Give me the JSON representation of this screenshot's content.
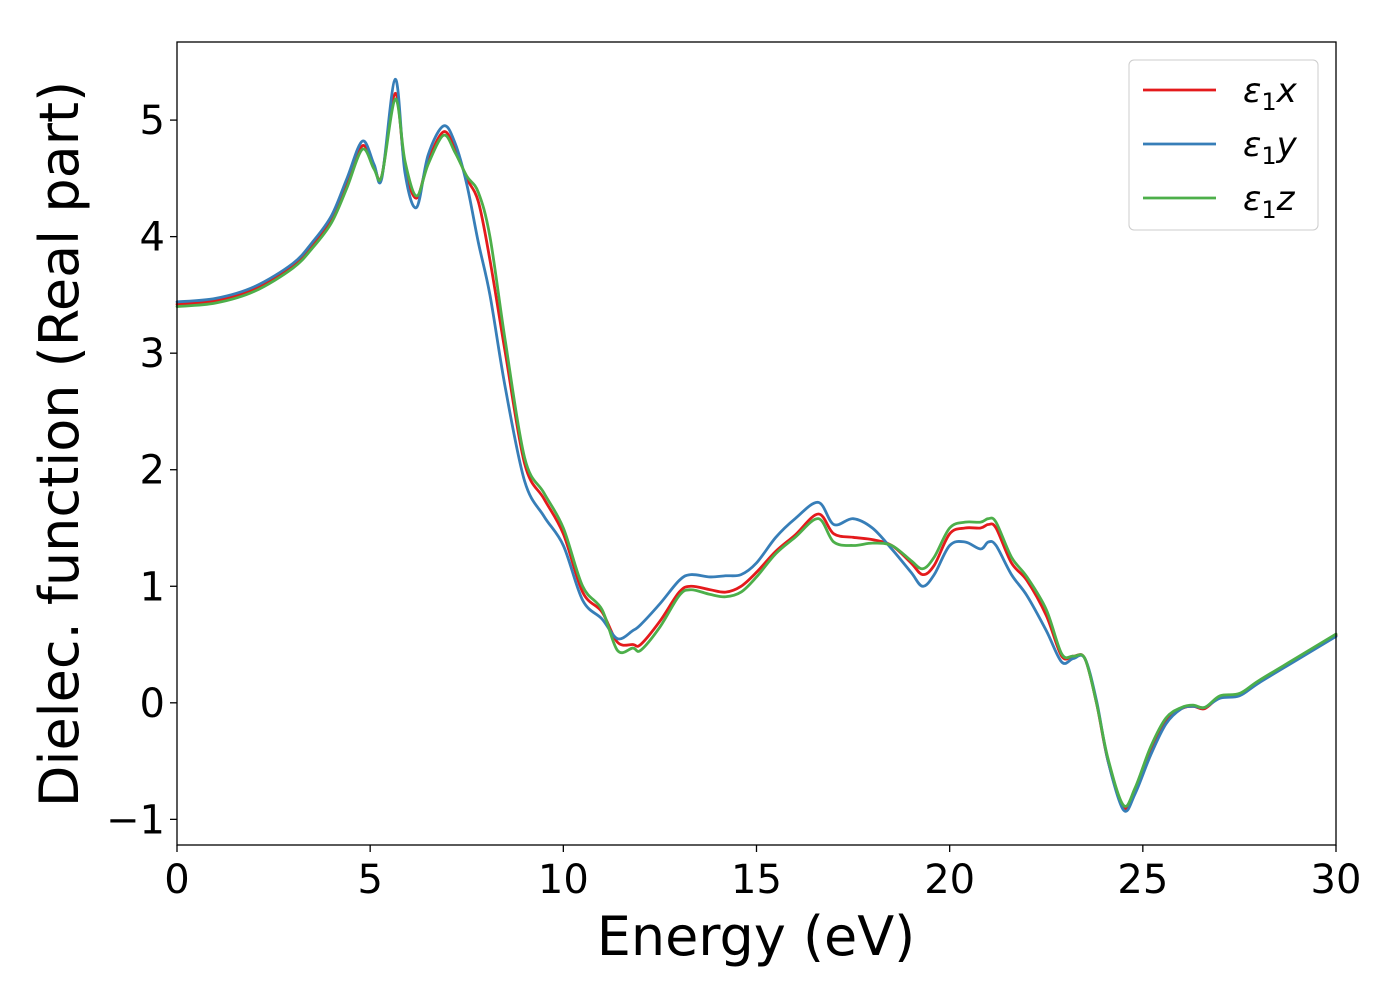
{
  "chart_data": {
    "type": "line",
    "xlabel": "Energy (eV)",
    "ylabel": "Dielec. function (Real part)",
    "xlim": [
      0,
      30
    ],
    "ylim": [
      -1.22,
      5.67
    ],
    "xticks": [
      0,
      5,
      10,
      15,
      20,
      25,
      30
    ],
    "xtick_labels": [
      "0",
      "5",
      "10",
      "15",
      "20",
      "25",
      "30"
    ],
    "yticks": [
      -1,
      0,
      1,
      2,
      3,
      4,
      5
    ],
    "ytick_labels": [
      "−1",
      "0",
      "1",
      "2",
      "3",
      "4",
      "5"
    ],
    "grid": false,
    "legend_position": "top-right",
    "series": [
      {
        "name": "ε1x",
        "legend_base": "ε",
        "legend_sub": "1",
        "legend_var": "x",
        "color": "#e41a1c",
        "x": [
          0,
          1,
          2,
          3,
          3.5,
          4,
          4.4,
          4.8,
          5.1,
          5.3,
          5.65,
          5.9,
          6.2,
          6.5,
          6.9,
          7.2,
          7.5,
          7.8,
          8.1,
          8.5,
          9.0,
          9.5,
          10.0,
          10.5,
          11.0,
          11.4,
          11.8,
          12.0,
          12.5,
          13.0,
          13.3,
          13.8,
          14.2,
          14.6,
          15.0,
          15.5,
          16.0,
          16.6,
          17.0,
          17.5,
          18.0,
          18.5,
          19.0,
          19.3,
          19.6,
          20.0,
          20.4,
          20.8,
          21.0,
          21.2,
          21.6,
          22.0,
          22.5,
          22.9,
          23.2,
          23.5,
          23.8,
          24.1,
          24.5,
          24.8,
          25.2,
          25.6,
          26.0,
          26.3,
          26.6,
          27.0,
          27.5,
          28.0,
          29.0,
          30.0
        ],
        "y": [
          3.42,
          3.45,
          3.55,
          3.75,
          3.92,
          4.15,
          4.45,
          4.78,
          4.6,
          4.52,
          5.23,
          4.6,
          4.33,
          4.65,
          4.9,
          4.75,
          4.5,
          4.3,
          3.8,
          3.0,
          2.05,
          1.75,
          1.45,
          0.95,
          0.78,
          0.52,
          0.5,
          0.5,
          0.7,
          0.95,
          1.0,
          0.97,
          0.95,
          1.0,
          1.12,
          1.3,
          1.44,
          1.62,
          1.45,
          1.42,
          1.4,
          1.35,
          1.2,
          1.1,
          1.18,
          1.45,
          1.5,
          1.5,
          1.53,
          1.5,
          1.2,
          1.05,
          0.75,
          0.4,
          0.4,
          0.38,
          0.0,
          -0.5,
          -0.9,
          -0.75,
          -0.4,
          -0.15,
          -0.05,
          -0.03,
          -0.05,
          0.05,
          0.07,
          0.18,
          0.38,
          0.58
        ]
      },
      {
        "name": "ε1y",
        "legend_base": "ε",
        "legend_sub": "1",
        "legend_var": "y",
        "color": "#377eb8",
        "x": [
          0,
          1,
          2,
          3,
          3.5,
          4,
          4.4,
          4.8,
          5.1,
          5.3,
          5.65,
          5.9,
          6.2,
          6.5,
          6.9,
          7.2,
          7.5,
          7.8,
          8.1,
          8.5,
          9.0,
          9.5,
          10.0,
          10.5,
          11.0,
          11.4,
          11.8,
          12.0,
          12.5,
          13.0,
          13.3,
          13.8,
          14.2,
          14.6,
          15.0,
          15.5,
          16.0,
          16.6,
          17.0,
          17.5,
          18.0,
          18.5,
          19.0,
          19.3,
          19.6,
          20.0,
          20.4,
          20.8,
          21.0,
          21.2,
          21.6,
          22.0,
          22.5,
          22.9,
          23.2,
          23.5,
          23.8,
          24.1,
          24.5,
          24.8,
          25.2,
          25.6,
          26.0,
          26.3,
          26.6,
          27.0,
          27.5,
          28.0,
          29.0,
          30.0
        ],
        "y": [
          3.44,
          3.47,
          3.57,
          3.77,
          3.95,
          4.18,
          4.5,
          4.82,
          4.62,
          4.5,
          5.35,
          4.55,
          4.25,
          4.7,
          4.95,
          4.8,
          4.45,
          3.95,
          3.5,
          2.7,
          1.9,
          1.6,
          1.35,
          0.88,
          0.72,
          0.55,
          0.62,
          0.67,
          0.85,
          1.05,
          1.1,
          1.08,
          1.09,
          1.1,
          1.2,
          1.42,
          1.58,
          1.72,
          1.53,
          1.58,
          1.5,
          1.32,
          1.12,
          1.0,
          1.1,
          1.35,
          1.38,
          1.32,
          1.38,
          1.35,
          1.1,
          0.92,
          0.62,
          0.35,
          0.38,
          0.38,
          0.02,
          -0.5,
          -0.92,
          -0.78,
          -0.45,
          -0.18,
          -0.05,
          -0.03,
          -0.04,
          0.04,
          0.06,
          0.17,
          0.37,
          0.57
        ]
      },
      {
        "name": "ε1z",
        "legend_base": "ε",
        "legend_sub": "1",
        "legend_var": "z",
        "color": "#4daf4a",
        "x": [
          0,
          1,
          2,
          3,
          3.5,
          4,
          4.4,
          4.8,
          5.1,
          5.3,
          5.65,
          5.9,
          6.2,
          6.5,
          6.9,
          7.2,
          7.5,
          7.8,
          8.1,
          8.5,
          9.0,
          9.5,
          10.0,
          10.5,
          11.0,
          11.4,
          11.8,
          12.0,
          12.5,
          13.0,
          13.3,
          13.8,
          14.2,
          14.6,
          15.0,
          15.5,
          16.0,
          16.6,
          17.0,
          17.5,
          18.0,
          18.5,
          19.0,
          19.3,
          19.6,
          20.0,
          20.4,
          20.8,
          21.0,
          21.2,
          21.6,
          22.0,
          22.5,
          22.9,
          23.2,
          23.5,
          23.8,
          24.1,
          24.5,
          24.8,
          25.2,
          25.6,
          26.0,
          26.3,
          26.6,
          27.0,
          27.5,
          28.0,
          29.0,
          30.0
        ],
        "y": [
          3.4,
          3.43,
          3.53,
          3.73,
          3.9,
          4.12,
          4.42,
          4.75,
          4.58,
          4.52,
          5.18,
          4.65,
          4.35,
          4.62,
          4.87,
          4.72,
          4.52,
          4.38,
          4.0,
          3.1,
          2.1,
          1.8,
          1.5,
          1.0,
          0.8,
          0.45,
          0.47,
          0.45,
          0.65,
          0.92,
          0.97,
          0.93,
          0.91,
          0.95,
          1.08,
          1.28,
          1.42,
          1.58,
          1.38,
          1.35,
          1.37,
          1.35,
          1.22,
          1.15,
          1.25,
          1.5,
          1.55,
          1.55,
          1.58,
          1.55,
          1.25,
          1.08,
          0.8,
          0.42,
          0.4,
          0.38,
          0.0,
          -0.48,
          -0.88,
          -0.73,
          -0.38,
          -0.13,
          -0.04,
          -0.02,
          -0.04,
          0.06,
          0.08,
          0.19,
          0.39,
          0.59
        ]
      }
    ]
  }
}
